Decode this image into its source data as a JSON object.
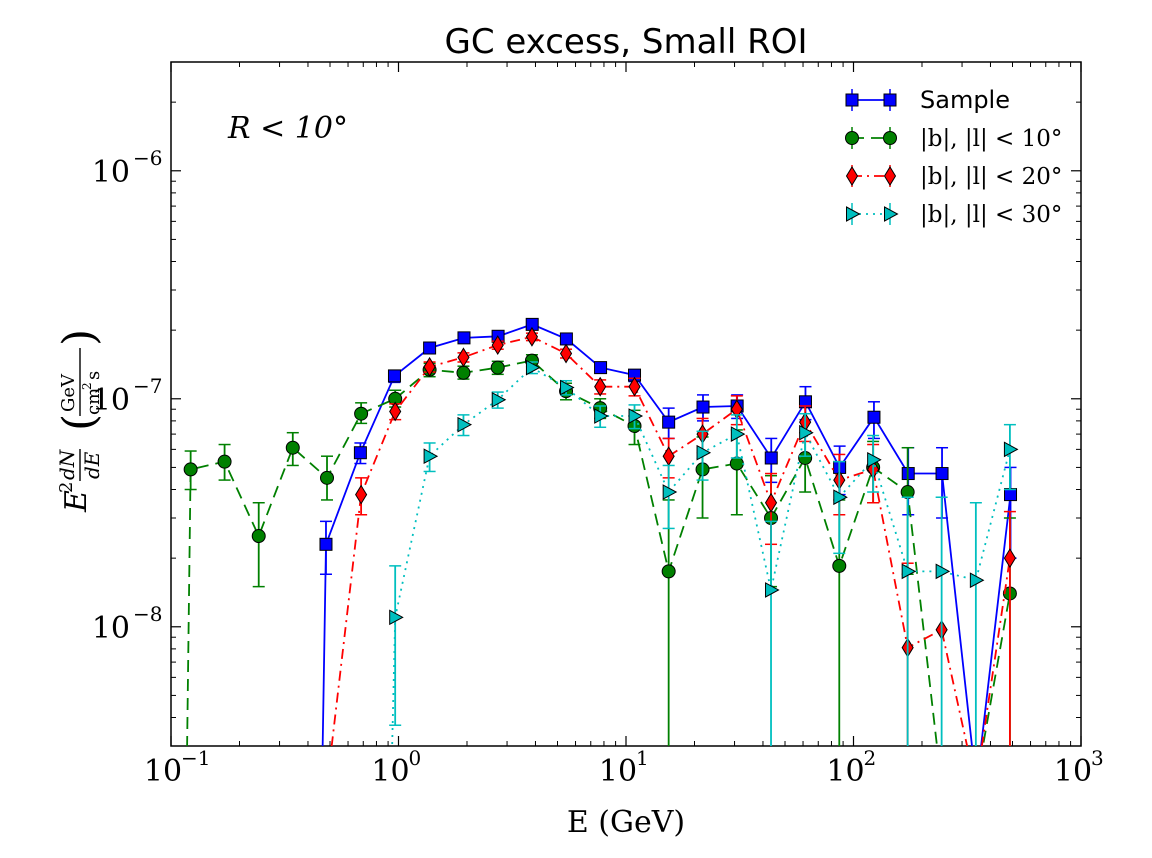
{
  "chart_data": {
    "type": "line",
    "title": "GC excess, Small ROI",
    "xlabel": "E (GeV)",
    "ylabel": "E^2 dN/dE  (GeV / cm^2 s)",
    "xscale": "log",
    "yscale": "log",
    "xlim": [
      0.1,
      1000
    ],
    "ylim": [
      3e-09,
      3e-06
    ],
    "grid": false,
    "legend_position": "top-right",
    "annotation": "R < 10°",
    "xticks": [
      {
        "value": 0.1,
        "base": "10",
        "exp": "−1"
      },
      {
        "value": 1,
        "base": "10",
        "exp": "0"
      },
      {
        "value": 10,
        "base": "10",
        "exp": "1"
      },
      {
        "value": 100,
        "base": "10",
        "exp": "2"
      },
      {
        "value": 1000,
        "base": "10",
        "exp": "3"
      }
    ],
    "yticks": [
      {
        "value": 1e-08,
        "base": "10",
        "exp": "−8"
      },
      {
        "value": 1e-07,
        "base": "10",
        "exp": "−7"
      },
      {
        "value": 1e-06,
        "base": "10",
        "exp": "−6"
      }
    ],
    "series": [
      {
        "name": "Sample",
        "color": "#0000ff",
        "marker": "square",
        "linestyle": "solid",
        "x": [
          0.48,
          0.68,
          0.96,
          1.37,
          1.94,
          2.74,
          3.87,
          5.47,
          7.73,
          10.9,
          15.4,
          21.8,
          30.8,
          43.5,
          61.5,
          86.9,
          123,
          174,
          245,
          347,
          490
        ],
        "y": [
          2.3e-08,
          5.8e-08,
          1.26e-07,
          1.67e-07,
          1.85e-07,
          1.88e-07,
          2.12e-07,
          1.83e-07,
          1.37e-07,
          1.27e-07,
          7.9e-08,
          9.2e-08,
          9.3e-08,
          5.5e-08,
          9.7e-08,
          5e-08,
          8.3e-08,
          4.7e-08,
          4.7e-08,
          null,
          3.8e-08
        ],
        "yerr_low": [
          1.7e-08,
          5.2e-08,
          1.18e-07,
          1.6e-07,
          1.79e-07,
          1.82e-07,
          2.05e-07,
          1.76e-07,
          1.3e-07,
          1.19e-07,
          6.7e-08,
          8e-08,
          8.2e-08,
          4.3e-08,
          8.1e-08,
          3.8e-08,
          6.7e-08,
          3.1e-08,
          3e-08,
          null,
          2e-08
        ],
        "yerr_high": [
          2.9e-08,
          6.4e-08,
          1.33e-07,
          1.75e-07,
          1.92e-07,
          1.95e-07,
          2.19e-07,
          1.91e-07,
          1.44e-07,
          1.34e-07,
          9.1e-08,
          1.04e-07,
          1.04e-07,
          6.7e-08,
          1.13e-07,
          6.2e-08,
          9.7e-08,
          6.1e-08,
          6.1e-08,
          null,
          5e-08
        ]
      },
      {
        "name": "|b|, |l| < 10°",
        "color": "#008000",
        "marker": "circle",
        "linestyle": "dashed",
        "x": [
          0.122,
          0.172,
          0.243,
          0.343,
          0.485,
          0.685,
          0.967,
          1.37,
          1.93,
          2.73,
          3.86,
          5.45,
          7.7,
          10.9,
          15.4,
          21.7,
          30.7,
          43.4,
          61.3,
          86.6,
          122,
          173,
          244,
          345,
          487
        ],
        "y": [
          4.9e-08,
          5.3e-08,
          2.5e-08,
          6.1e-08,
          4.5e-08,
          8.6e-08,
          1e-07,
          1.34e-07,
          1.3e-07,
          1.37e-07,
          1.47e-07,
          1.08e-07,
          9.1e-08,
          7.6e-08,
          1.75e-08,
          4.9e-08,
          5.2e-08,
          3e-08,
          5.5e-08,
          1.85e-08,
          5e-08,
          3.9e-08,
          null,
          null,
          1.4e-08
        ],
        "yerr_low": [
          4e-08,
          4.4e-08,
          1.5e-08,
          5.1e-08,
          3.6e-08,
          7.8e-08,
          9.2e-08,
          1.25e-07,
          1.22e-07,
          1.28e-07,
          1.38e-07,
          9.9e-08,
          8.2e-08,
          6.3e-08,
          null,
          3e-08,
          3.1e-08,
          1.5e-08,
          3.9e-08,
          null,
          3.5e-08,
          1.7e-08,
          null,
          null,
          null
        ],
        "yerr_high": [
          5.9e-08,
          6.3e-08,
          3.5e-08,
          7.1e-08,
          5.6e-08,
          9.6e-08,
          1.09e-07,
          1.43e-07,
          1.39e-07,
          1.46e-07,
          1.56e-07,
          1.17e-07,
          1e-07,
          8.9e-08,
          3.6e-08,
          6.8e-08,
          7.3e-08,
          4.6e-08,
          7.1e-08,
          3.6e-08,
          6.5e-08,
          6.1e-08,
          null,
          null,
          3e-08
        ]
      },
      {
        "name": "|b|, |l| < 20°",
        "color": "#ff0000",
        "marker": "thin_diamond",
        "linestyle": "dashdot",
        "x": [
          0.485,
          0.685,
          0.967,
          1.37,
          1.93,
          2.73,
          3.86,
          5.45,
          7.7,
          10.9,
          15.4,
          21.7,
          30.7,
          43.4,
          61.3,
          86.6,
          122,
          173,
          244,
          345,
          487
        ],
        "y": [
          null,
          3.8e-08,
          8.8e-08,
          1.38e-07,
          1.52e-07,
          1.72e-07,
          1.87e-07,
          1.58e-07,
          1.13e-07,
          1.13e-07,
          5.6e-08,
          7e-08,
          9e-08,
          3.5e-08,
          7.9e-08,
          4.4e-08,
          4.9e-08,
          8.1e-09,
          9.7e-09,
          null,
          2e-08
        ],
        "yerr_low": [
          null,
          3.1e-08,
          8.1e-08,
          1.31e-07,
          1.45e-07,
          1.65e-07,
          1.8e-07,
          1.51e-07,
          1.05e-07,
          1.03e-07,
          4.5e-08,
          5.8e-08,
          7.7e-08,
          2.3e-08,
          6.5e-08,
          3.1e-08,
          3.5e-08,
          null,
          null,
          null,
          null
        ],
        "yerr_high": [
          null,
          4.5e-08,
          9.5e-08,
          1.45e-07,
          1.59e-07,
          1.79e-07,
          1.94e-07,
          1.65e-07,
          1.21e-07,
          1.23e-07,
          6.7e-08,
          8.2e-08,
          1.03e-07,
          4.7e-08,
          9.3e-08,
          5.7e-08,
          6.3e-08,
          1.9e-08,
          null,
          null,
          3.2e-08
        ]
      },
      {
        "name": "|b|, |l| < 30°",
        "color": "#00bfbf",
        "marker": "triangle_right",
        "linestyle": "dotted",
        "x": [
          0.967,
          1.37,
          1.93,
          2.73,
          3.86,
          5.45,
          7.7,
          10.9,
          15.4,
          21.7,
          30.7,
          43.4,
          61.3,
          86.6,
          122,
          173,
          244,
          345,
          487
        ],
        "y": [
          1.1e-08,
          5.6e-08,
          7.7e-08,
          9.9e-08,
          1.37e-07,
          1.12e-07,
          8.4e-08,
          8.4e-08,
          3.9e-08,
          5.8e-08,
          7e-08,
          1.45e-08,
          7.1e-08,
          3.7e-08,
          5.4e-08,
          1.75e-08,
          1.75e-08,
          1.6e-08,
          6e-08
        ],
        "yerr_low": [
          3.7e-09,
          4.8e-08,
          6.9e-08,
          9.1e-08,
          1.29e-07,
          1.04e-07,
          7.5e-08,
          7.4e-08,
          2.7e-08,
          4.4e-08,
          5.5e-08,
          null,
          5.6e-08,
          2.1e-08,
          3.9e-08,
          null,
          null,
          null,
          4e-08
        ],
        "yerr_high": [
          1.85e-08,
          6.4e-08,
          8.5e-08,
          1.07e-07,
          1.45e-07,
          1.2e-07,
          9.3e-08,
          9.4e-08,
          5.1e-08,
          7.2e-08,
          8.5e-08,
          2.9e-08,
          8.6e-08,
          5.3e-08,
          6.9e-08,
          3.7e-08,
          3.7e-08,
          3.5e-08,
          7.7e-08
        ]
      }
    ]
  }
}
